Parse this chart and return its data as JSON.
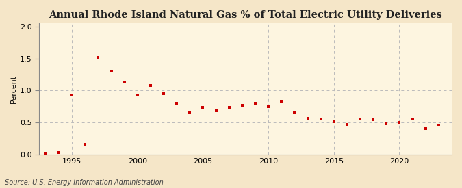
{
  "title": "Annual Rhode Island Natural Gas % of Total Electric Utility Deliveries",
  "ylabel": "Percent",
  "source": "Source: U.S. Energy Information Administration",
  "background_color": "#f5e6c8",
  "plot_background_color": "#fdf5e0",
  "grid_color": "#bbbbbb",
  "marker_color": "#cc0000",
  "spine_color": "#888888",
  "xlim": [
    1992.5,
    2024
  ],
  "ylim": [
    0.0,
    2.05
  ],
  "yticks": [
    0.0,
    0.5,
    1.0,
    1.5,
    2.0
  ],
  "xticks": [
    1995,
    2000,
    2005,
    2010,
    2015,
    2020
  ],
  "years": [
    1993,
    1994,
    1995,
    1996,
    1997,
    1998,
    1999,
    2000,
    2001,
    2002,
    2003,
    2004,
    2005,
    2006,
    2007,
    2008,
    2009,
    2010,
    2011,
    2012,
    2013,
    2014,
    2015,
    2016,
    2017,
    2018,
    2019,
    2020,
    2021,
    2022,
    2023
  ],
  "values": [
    0.02,
    0.03,
    0.93,
    0.16,
    1.52,
    1.3,
    1.13,
    0.93,
    1.08,
    0.95,
    0.8,
    0.65,
    0.74,
    0.68,
    0.74,
    0.77,
    0.8,
    0.75,
    0.83,
    0.65,
    0.57,
    0.55,
    0.51,
    0.47,
    0.55,
    0.54,
    0.48,
    0.5,
    0.55,
    0.41,
    0.46
  ],
  "title_fontsize": 10.5,
  "ylabel_fontsize": 8,
  "tick_fontsize": 8,
  "source_fontsize": 7
}
